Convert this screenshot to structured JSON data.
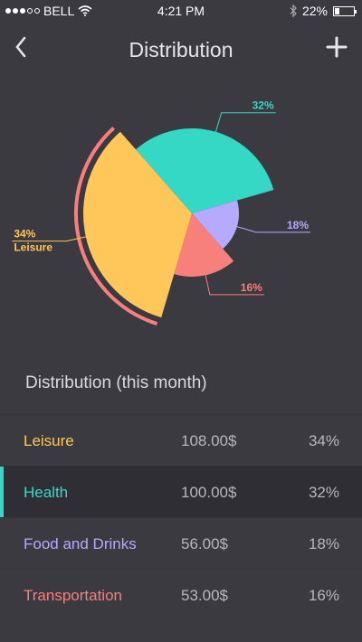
{
  "status": {
    "carrier": "BELL",
    "time": "4:21 PM",
    "battery": "22%",
    "battery_level": 0.22,
    "signal_bars_on": 3,
    "signal_bars_total": 5
  },
  "nav": {
    "title": "Distribution",
    "back_icon": "chevron-left-icon",
    "add_icon": "plus-icon"
  },
  "chart_data": {
    "type": "pie",
    "slices": [
      {
        "name": "Health",
        "value": 32,
        "label": "32%",
        "color": "#35d8c4"
      },
      {
        "name": "Food and Drinks",
        "value": 18,
        "label": "18%",
        "color": "#b6aaff"
      },
      {
        "name": "Transportation",
        "value": 16,
        "label": "16%",
        "color": "#f77f7c"
      },
      {
        "name": "Leisure",
        "value": 34,
        "label": "34%",
        "color": "#ffc65a",
        "sublabel": "Leisure"
      }
    ],
    "highlight": "Leisure"
  },
  "section_title": "Distribution (this month)",
  "rows": [
    {
      "name": "Leisure",
      "amount": "108.00$",
      "pct": "34%",
      "color": "#ffc65a",
      "selected": false
    },
    {
      "name": "Health",
      "amount": "100.00$",
      "pct": "32%",
      "color": "#35d8c4",
      "selected": true
    },
    {
      "name": "Food and Drinks",
      "amount": "56.00$",
      "pct": "18%",
      "color": "#b6aaff",
      "selected": false
    },
    {
      "name": "Transportation",
      "amount": "53.00$",
      "pct": "16%",
      "color": "#f77f7c",
      "selected": false
    }
  ]
}
